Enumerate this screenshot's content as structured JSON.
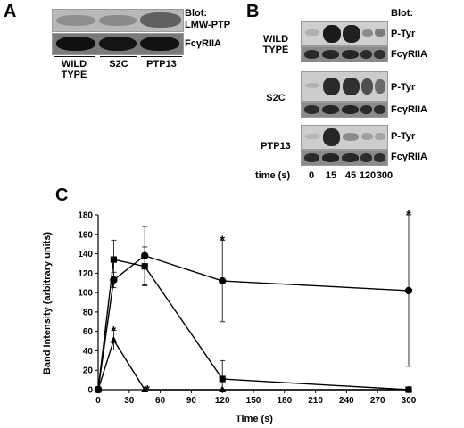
{
  "panel_a": {
    "letter": "A",
    "blot_prefix": "Blot:",
    "blot_target": "LMW-PTP",
    "loading_label": "FcγRIIA",
    "lanes": [
      "WILD\nTYPE",
      "S2C",
      "PTP13"
    ]
  },
  "panel_b": {
    "letter": "B",
    "blot_prefix": "Blot:",
    "groups": [
      {
        "name": "WILD\nTYPE",
        "row1": "P-Tyr",
        "row2": "FcγRIIA"
      },
      {
        "name": "S2C",
        "row1": "P-Tyr",
        "row2": "FcγRIIA"
      },
      {
        "name": "PTP13",
        "row1": "P-Tyr",
        "row2": "FcγRIIA"
      }
    ],
    "time_label": "time (s)",
    "time_values": [
      "0",
      "15",
      "45",
      "120",
      "300"
    ]
  },
  "panel_c": {
    "letter": "C"
  },
  "chart_data": {
    "type": "line",
    "title": "",
    "xlabel": "Time (s)",
    "ylabel": "Band Intensity (arbitrary units)",
    "xlim": [
      0,
      300
    ],
    "ylim": [
      0,
      180
    ],
    "xticks": [
      0,
      30,
      60,
      90,
      120,
      150,
      180,
      210,
      240,
      270,
      300
    ],
    "yticks": [
      0,
      20,
      40,
      60,
      80,
      100,
      120,
      140,
      160,
      180
    ],
    "grid": false,
    "series": [
      {
        "marker": "circle",
        "points": [
          [
            0,
            0
          ],
          [
            15,
            113
          ],
          [
            45,
            138
          ],
          [
            120,
            112
          ],
          [
            300,
            102
          ]
        ],
        "error": [
          0,
          8,
          30,
          42,
          78
        ]
      },
      {
        "marker": "square",
        "points": [
          [
            0,
            0
          ],
          [
            15,
            134
          ],
          [
            45,
            127
          ],
          [
            120,
            11
          ],
          [
            300,
            0
          ]
        ],
        "error": [
          0,
          20,
          20,
          19,
          0
        ]
      },
      {
        "marker": "triangle",
        "points": [
          [
            0,
            0
          ],
          [
            15,
            51
          ],
          [
            45,
            0
          ],
          [
            120,
            0
          ],
          [
            300,
            0
          ]
        ],
        "error": [
          0,
          10,
          0,
          0,
          0
        ]
      }
    ],
    "annotations": [
      {
        "text": "*",
        "x": 15,
        "y": 64
      },
      {
        "text": "*",
        "x": 45,
        "y": 3
      },
      {
        "text": "*",
        "x": 120,
        "y": 157
      },
      {
        "text": "*",
        "x": 300,
        "y": 183
      }
    ]
  }
}
